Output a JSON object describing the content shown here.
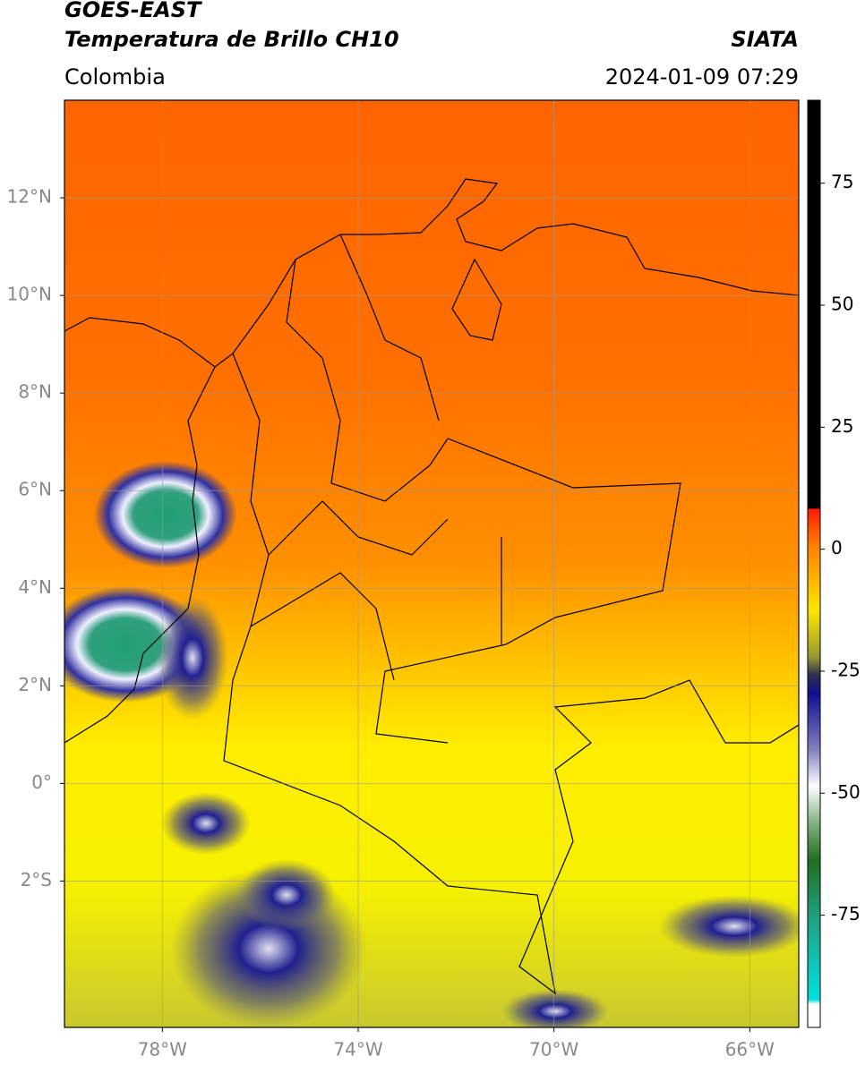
{
  "map": {
    "title": "GOES-EAST",
    "subtitle": "Temperatura de Brillo CH10",
    "region": "Colombia",
    "source": "SIATA",
    "datetime": "2024-01-09 07:29",
    "lonlim": [
      -80,
      -65
    ],
    "latlim": [
      -5,
      14
    ],
    "lon_ticks": [
      {
        "value": -78,
        "label": "78°W"
      },
      {
        "value": -74,
        "label": "74°W"
      },
      {
        "value": -70,
        "label": "70°W"
      },
      {
        "value": -66,
        "label": "66°W"
      }
    ],
    "lat_ticks": [
      {
        "value": 12,
        "label": "12°N"
      },
      {
        "value": 10,
        "label": "10°N"
      },
      {
        "value": 8,
        "label": "8°N"
      },
      {
        "value": 6,
        "label": "6°N"
      },
      {
        "value": 4,
        "label": "4°N"
      },
      {
        "value": 2,
        "label": "2°N"
      },
      {
        "value": 0,
        "label": "0°"
      },
      {
        "value": -2,
        "label": "2°S"
      }
    ],
    "colorbar": {
      "lim": [
        -98,
        92
      ],
      "ticks": [
        75,
        50,
        25,
        0,
        -25,
        -50,
        -75
      ]
    }
  }
}
